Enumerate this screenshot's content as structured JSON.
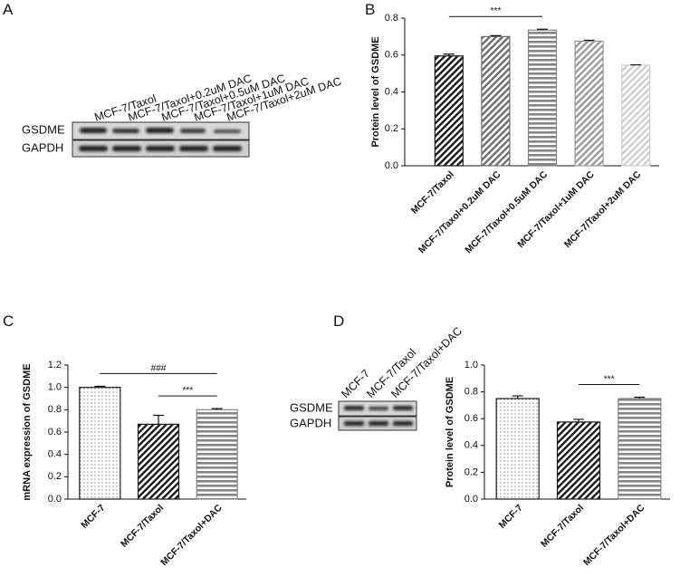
{
  "panel_letters": [
    "A",
    "B",
    "C",
    "D"
  ],
  "blots": [
    {
      "lanes": [
        "MCF-7/Taxol",
        "MCF-7/Taxol+0.2uM DAC",
        "MCF-7/Taxol+0.5uM DAC",
        "MCF-7/Taxol+1uM DAC",
        "MCF-7/Taxol+2uM DAC"
      ],
      "rows": [
        "GSDME",
        "GAPDH"
      ]
    },
    {
      "lanes": [
        "MCF-7",
        "MCF-7/Taxol",
        "MCF-7/Taxol+DAC"
      ],
      "rows": [
        "GSDME",
        "GAPDH"
      ]
    }
  ],
  "chart_data": [
    {
      "type": "bar",
      "y_label": "Protein level of GSDME",
      "categories": [
        "MCF-7/Taxol",
        "MCF-7/Taxol+0.2uM DAC",
        "MCF-7/Taxol+0.5uM DAC",
        "MCF-7/Taxol+1uM DAC",
        "MCF-7/Taxol+2uM DAC"
      ],
      "values": [
        0.595,
        0.7,
        0.735,
        0.675,
        0.545
      ],
      "errors": [
        0.01,
        0.005,
        0.005,
        0.005,
        0.002
      ],
      "colors": [
        "#1a1a1a",
        "#6e6e6e",
        "#858585",
        "#9a9a9a",
        "#cfcfcf"
      ],
      "patterns": [
        "diagonal",
        "diagonal",
        "horizontal",
        "diagonal",
        "diagonal"
      ],
      "ylim": [
        0,
        0.8
      ],
      "yticks": [
        {
          "value": 0,
          "label": "0.0"
        },
        0.2,
        0.4,
        0.6,
        0.8
      ],
      "annotations": [
        {
          "text": "***",
          "categories": [
            "MCF-7/Taxol",
            "MCF-7/Taxol+0.5uM DAC"
          ]
        }
      ]
    },
    {
      "type": "bar",
      "y_label": "mRNA expression of GSDME",
      "categories": [
        "MCF-7",
        "MCF-7/Taxol",
        "MCF-7/Taxol+DAC"
      ],
      "values": [
        1.0,
        0.67,
        0.8
      ],
      "errors": [
        0.01,
        0.08,
        0.01
      ],
      "colors": [
        "#1a1a1a",
        "#1a1a1a",
        "#858585"
      ],
      "patterns": [
        "dots",
        "diagonal",
        "horizontal"
      ],
      "ylim": [
        0,
        1.2
      ],
      "yticks": [
        {
          "value": 0,
          "label": "0.0"
        },
        0.2,
        0.4,
        0.6,
        0.8,
        {
          "value": 1,
          "label": "1.0"
        },
        1.2
      ],
      "annotations": [
        {
          "text": "###",
          "categories": [
            "MCF-7",
            "MCF-7/Taxol+DAC"
          ]
        },
        {
          "text": "***",
          "categories": [
            "MCF-7/Taxol",
            "MCF-7/Taxol+DAC"
          ]
        }
      ]
    },
    {
      "type": "bar",
      "y_label": "Protein level of GSDME",
      "categories": [
        "MCF-7",
        "MCF-7/Taxol",
        "MCF-7/Taxol+DAC"
      ],
      "values": [
        0.75,
        0.575,
        0.75
      ],
      "errors": [
        0.02,
        0.02,
        0.01
      ],
      "colors": [
        "#1a1a1a",
        "#1a1a1a",
        "#858585"
      ],
      "patterns": [
        "dots",
        "diagonal",
        "horizontal"
      ],
      "ylim": [
        0,
        1.0
      ],
      "yticks": [
        {
          "value": 0,
          "label": "0.0"
        },
        0.2,
        0.4,
        0.6,
        0.8,
        {
          "value": 1,
          "label": "1.0"
        }
      ],
      "annotations": [
        {
          "text": "***",
          "categories": [
            "MCF-7/Taxol",
            "MCF-7/Taxol+DAC"
          ]
        }
      ]
    }
  ]
}
